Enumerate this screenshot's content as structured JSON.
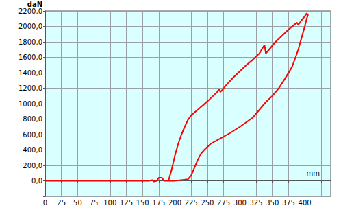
{
  "chart_data": {
    "type": "line",
    "x_label": "mm",
    "y_label": "daN",
    "color": "#ff0000",
    "grid": true,
    "xlim": [
      0,
      440
    ],
    "xticks": [
      0,
      25,
      50,
      75,
      100,
      125,
      150,
      175,
      200,
      225,
      250,
      275,
      300,
      325,
      350,
      375,
      400
    ],
    "ylim": [
      -200,
      2200
    ],
    "yticks": [
      {
        "value": 0,
        "label": "0,0"
      },
      {
        "value": 200,
        "label": "200,0"
      },
      {
        "value": 400,
        "label": "400,0"
      },
      {
        "value": 600,
        "label": "600,0"
      },
      {
        "value": 800,
        "label": "800,0"
      },
      {
        "value": 1000,
        "label": "1000,0"
      },
      {
        "value": 1200,
        "label": "1200,0"
      },
      {
        "value": 1400,
        "label": "1400,0"
      },
      {
        "value": 1600,
        "label": "1600,0"
      },
      {
        "value": 1800,
        "label": "1800,0"
      },
      {
        "value": 2000,
        "label": "2000,0"
      },
      {
        "value": 2200,
        "label": "2200,0"
      }
    ],
    "x": [
      0,
      160,
      165,
      168,
      172,
      175,
      180,
      183,
      188,
      190,
      195,
      200,
      205,
      210,
      215,
      220,
      225,
      235,
      250,
      265,
      268,
      270,
      280,
      290,
      300,
      310,
      320,
      330,
      335,
      338,
      340,
      345,
      355,
      365,
      375,
      385,
      388,
      390,
      395,
      400,
      403,
      405,
      403,
      400,
      395,
      390,
      385,
      380,
      370,
      360,
      350,
      340,
      330,
      320,
      310,
      300,
      285,
      270,
      255,
      245,
      240,
      235,
      230,
      225,
      220,
      210,
      200,
      190
    ],
    "values": [
      0,
      0,
      10,
      -10,
      0,
      40,
      40,
      0,
      0,
      0,
      150,
      330,
      480,
      600,
      700,
      790,
      850,
      920,
      1030,
      1150,
      1190,
      1150,
      1250,
      1340,
      1420,
      1500,
      1570,
      1650,
      1720,
      1760,
      1650,
      1700,
      1800,
      1880,
      1960,
      2030,
      2050,
      2020,
      2080,
      2130,
      2170,
      2150,
      2100,
      2000,
      1850,
      1700,
      1580,
      1470,
      1330,
      1200,
      1100,
      1020,
      920,
      820,
      760,
      700,
      620,
      550,
      480,
      400,
      350,
      270,
      170,
      70,
      20,
      10,
      0,
      0
    ]
  }
}
